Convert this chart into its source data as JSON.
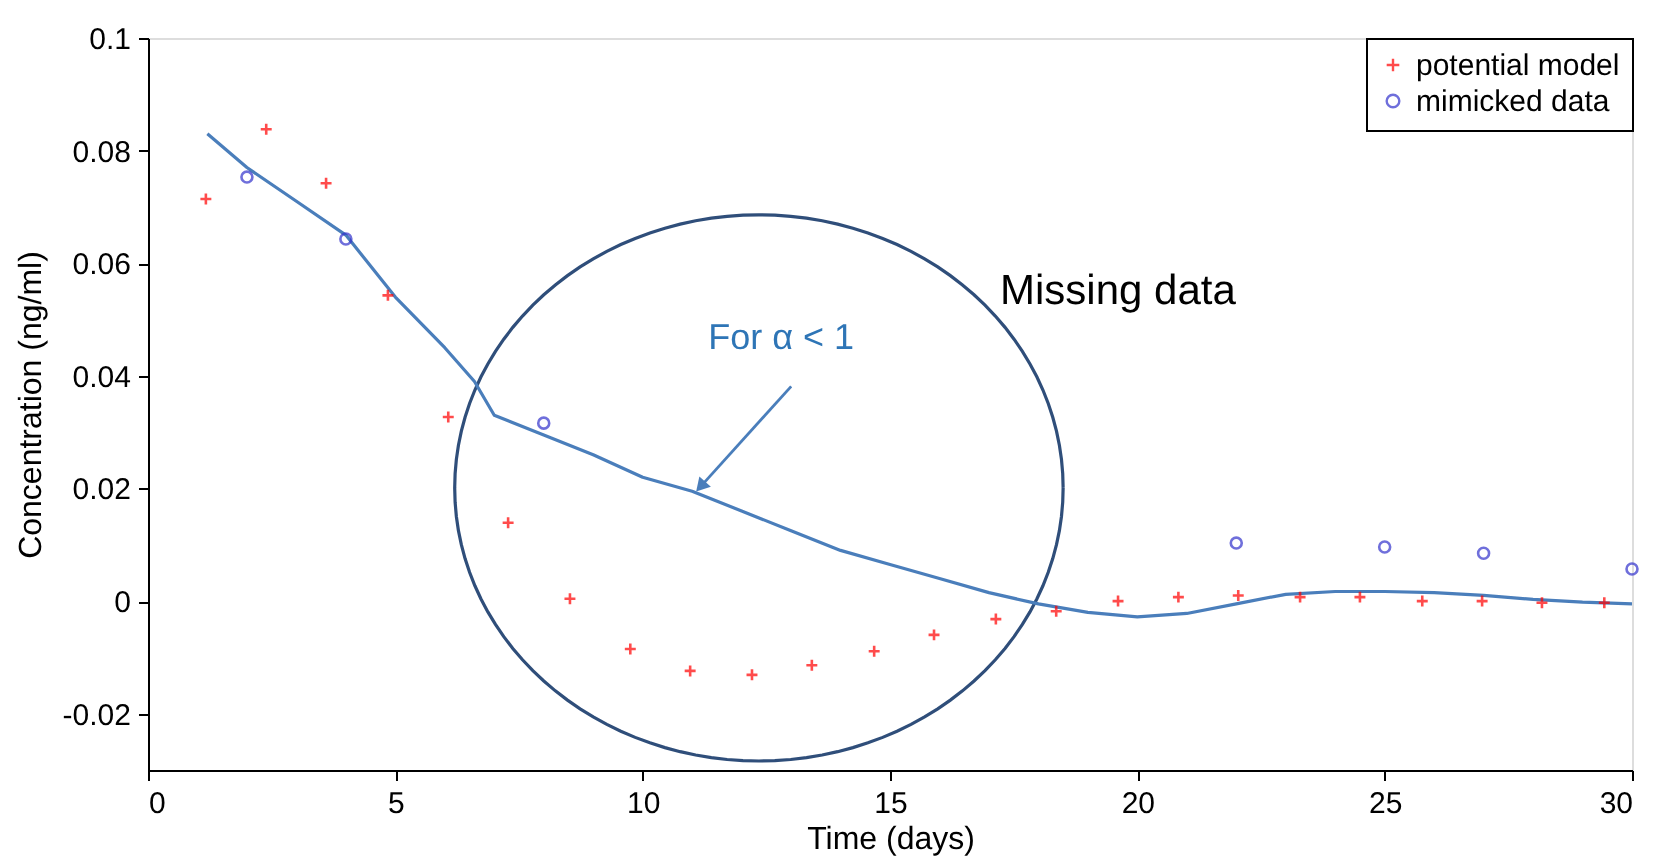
{
  "chart_data": {
    "type": "scatter",
    "xlabel": "Time (days)",
    "ylabel": "Concentration (ng/ml)",
    "xlim": [
      0,
      30
    ],
    "xticks": [
      0,
      5,
      10,
      15,
      20,
      25,
      30
    ],
    "ylim": [
      -0.03,
      0.1
    ],
    "yticks": [
      -0.02,
      0,
      0.02,
      0.04,
      0.06,
      0.08,
      0.1
    ],
    "grid": false,
    "legend": "top right",
    "annotations": [
      {
        "text": "For α < 1",
        "x": 11,
        "y": 0.0185
      },
      "Missing data"
    ],
    "series": [
      {
        "type": "line",
        "color": "#4a7ebb",
        "line_style": "solid",
        "marker": "none",
        "x": [
          1.2,
          2,
          3,
          4,
          5,
          6,
          6.6,
          7,
          8,
          9,
          10,
          11,
          12,
          13,
          14,
          15,
          16,
          17,
          18,
          19,
          20,
          21,
          22,
          23,
          24,
          25,
          26,
          27,
          28,
          29,
          30
        ],
        "values": [
          0.083,
          0.077,
          0.071,
          0.065,
          0.054,
          0.045,
          0.039,
          0.033,
          0.0295,
          0.026,
          0.022,
          0.0195,
          0.016,
          0.0125,
          0.009,
          0.0065,
          0.004,
          0.0015,
          -0.0005,
          -0.002,
          -0.0028,
          -0.0022,
          -0.0005,
          0.0012,
          0.0017,
          0.0017,
          0.0015,
          0.001,
          0.0003,
          -0.0002,
          -0.0005
        ]
      },
      {
        "name": "potential model",
        "marker": "cross",
        "color": "#ff0000",
        "x": [
          1.17,
          2.39,
          3.6,
          4.85,
          6.07,
          7.28,
          8.53,
          9.75,
          10.96,
          12.21,
          13.42,
          14.68,
          15.89,
          17.14,
          18.36,
          19.61,
          20.83,
          22.04,
          23.29,
          24.5,
          25.76,
          26.97,
          28.18,
          29.44
        ],
        "values": [
          0.0714,
          0.0838,
          0.0742,
          0.0543,
          0.0327,
          0.0139,
          0.0004,
          -0.0085,
          -0.0124,
          -0.0131,
          -0.0114,
          -0.0089,
          -0.006,
          -0.0032,
          -0.0018,
          0,
          0.0007,
          0.001,
          0.0007,
          0.0007,
          0,
          0,
          -0.0003,
          -0.0003
        ]
      },
      {
        "name": "mimicked data",
        "marker": "circle",
        "color": "#3333cc",
        "x": [
          2,
          4,
          8,
          22,
          25,
          27,
          30
        ],
        "values": [
          0.0753,
          0.0643,
          0.0316,
          0.0103,
          0.0096,
          0.0085,
          0.0057
        ]
      }
    ]
  }
}
